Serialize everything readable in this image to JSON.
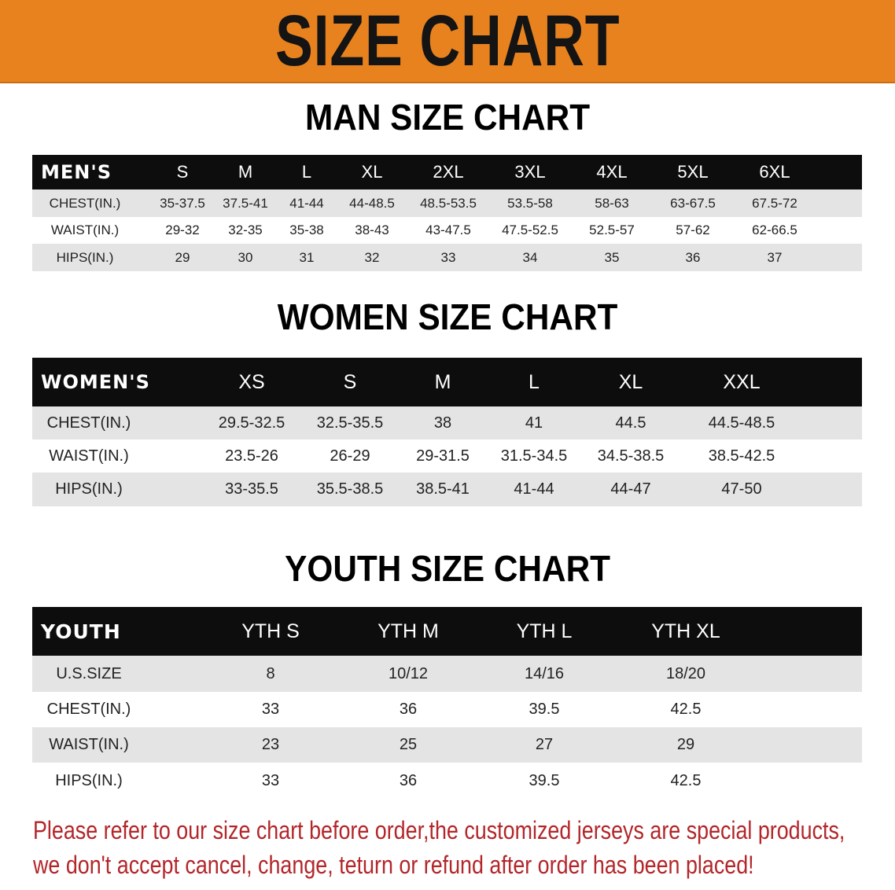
{
  "banner": {
    "title": "SIZE CHART",
    "color": "#E8821F"
  },
  "men": {
    "title": "MAN SIZE CHART",
    "header": [
      "MEN'S",
      "S",
      "M",
      "L",
      "XL",
      "2XL",
      "3XL",
      "4XL",
      "5XL",
      "6XL"
    ],
    "rows": [
      [
        "CHEST(IN.)",
        "35-37.5",
        "37.5-41",
        "41-44",
        "44-48.5",
        "48.5-53.5",
        "53.5-58",
        "58-63",
        "63-67.5",
        "67.5-72"
      ],
      [
        "WAIST(IN.)",
        "29-32",
        "32-35",
        "35-38",
        "38-43",
        "43-47.5",
        "47.5-52.5",
        "52.5-57",
        "57-62",
        "62-66.5"
      ],
      [
        "HIPS(IN.)",
        "29",
        "30",
        "31",
        "32",
        "33",
        "34",
        "35",
        "36",
        "37"
      ]
    ]
  },
  "women": {
    "title": "WOMEN SIZE CHART",
    "header": [
      "WOMEN'S",
      "XS",
      "S",
      "M",
      "L",
      "XL",
      "XXL"
    ],
    "rows": [
      [
        "CHEST(IN.)",
        "29.5-32.5",
        "32.5-35.5",
        "38",
        "41",
        "44.5",
        "44.5-48.5"
      ],
      [
        "WAIST(IN.)",
        "23.5-26",
        "26-29",
        "29-31.5",
        "31.5-34.5",
        "34.5-38.5",
        "38.5-42.5"
      ],
      [
        "HIPS(IN.)",
        "33-35.5",
        "35.5-38.5",
        "38.5-41",
        "41-44",
        "44-47",
        "47-50"
      ]
    ]
  },
  "youth": {
    "title": "YOUTH SIZE CHART",
    "header": [
      "YOUTH",
      "YTH S",
      "YTH M",
      "YTH L",
      "YTH XL"
    ],
    "rows": [
      [
        "U.S.SIZE",
        "8",
        "10/12",
        "14/16",
        "18/20"
      ],
      [
        "CHEST(IN.)",
        "33",
        "36",
        "39.5",
        "42.5"
      ],
      [
        "WAIST(IN.)",
        "23",
        "25",
        "27",
        "29"
      ],
      [
        "HIPS(IN.)",
        "33",
        "36",
        "39.5",
        "42.5"
      ]
    ]
  },
  "notice": {
    "line1": "Please refer to our size chart before order,the customized jerseys are special products,",
    "line2": "we don't accept cancel, change, teturn or refund after order has been placed!",
    "color": "#B3262A"
  }
}
